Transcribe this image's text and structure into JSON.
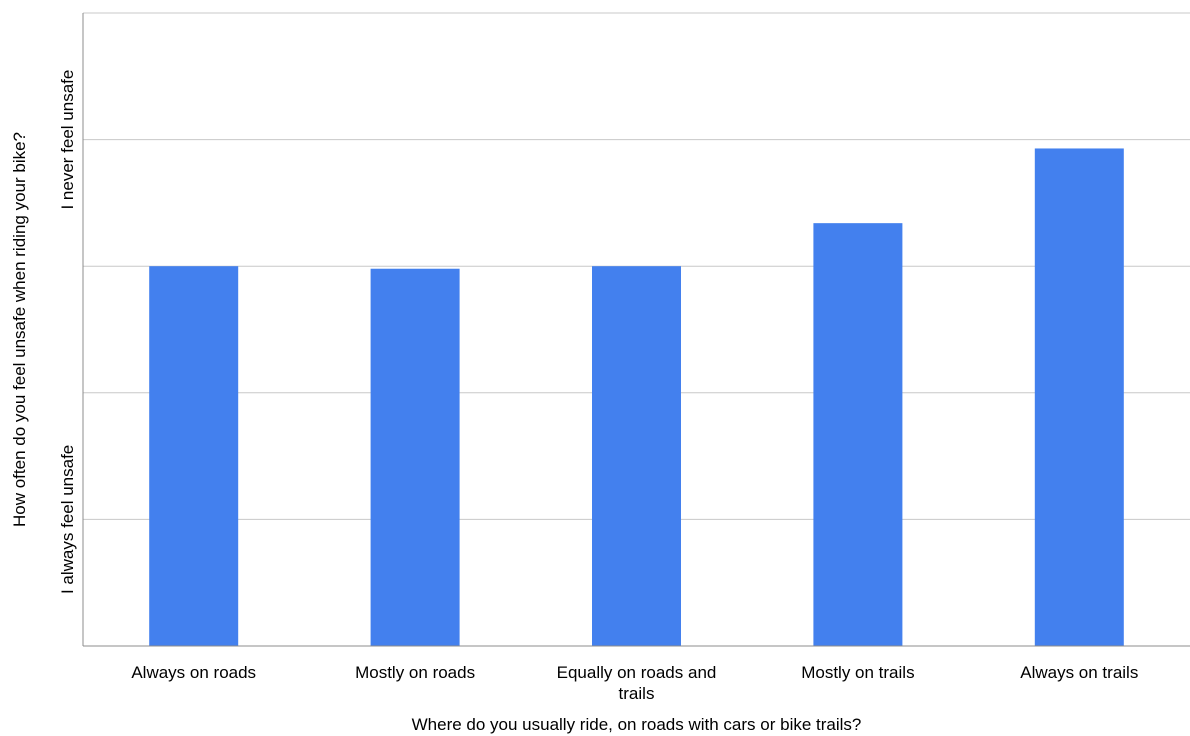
{
  "chart_data": {
    "type": "bar",
    "categories": [
      "Always on roads",
      "Mostly on roads",
      "Equally on roads and trails",
      "Mostly on trails",
      "Always on trails"
    ],
    "values": [
      3.0,
      2.98,
      3.0,
      3.34,
      3.93
    ],
    "xlabel": "Where do you usually ride, on roads with cars or bike trails?",
    "ylabel": "How often do you feel unsafe when riding your bike?",
    "ylim": [
      0,
      5
    ],
    "y_tick_labels": [
      {
        "value": 1,
        "label": "I always feel unsafe"
      },
      {
        "value": 4,
        "label": "I never feel unsafe"
      }
    ],
    "grid": true,
    "colors": {
      "bar": "#4380ee",
      "grid": "#c8c8c8",
      "axis": "#8c8c8c"
    }
  }
}
